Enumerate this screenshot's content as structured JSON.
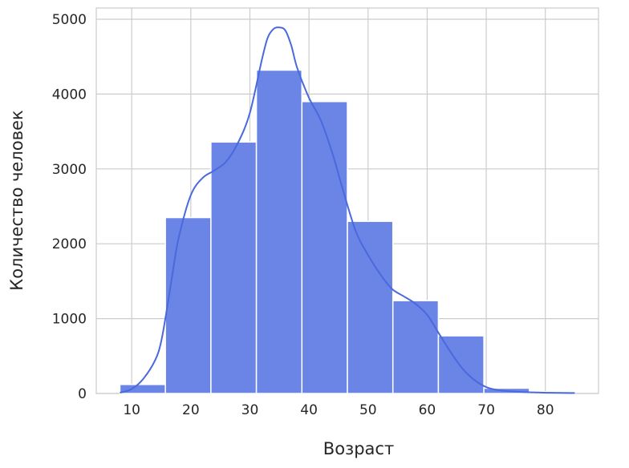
{
  "chart_data": {
    "type": "bar",
    "title": "",
    "xlabel": "Возраст",
    "ylabel": "Количество человек",
    "xlim": [
      4,
      89
    ],
    "ylim": [
      0,
      5150
    ],
    "grid": true,
    "xticks": [
      10,
      20,
      30,
      40,
      50,
      60,
      70,
      80
    ],
    "yticks": [
      0,
      1000,
      2000,
      3000,
      4000,
      5000
    ],
    "bins": [
      {
        "x0": 8.0,
        "x1": 15.7,
        "value": 120
      },
      {
        "x0": 15.7,
        "x1": 23.4,
        "value": 2350
      },
      {
        "x0": 23.4,
        "x1": 31.1,
        "value": 3360
      },
      {
        "x0": 31.1,
        "x1": 38.8,
        "value": 4320
      },
      {
        "x0": 38.8,
        "x1": 46.5,
        "value": 3900
      },
      {
        "x0": 46.5,
        "x1": 54.2,
        "value": 2300
      },
      {
        "x0": 54.2,
        "x1": 61.9,
        "value": 1240
      },
      {
        "x0": 61.9,
        "x1": 69.6,
        "value": 770
      },
      {
        "x0": 69.6,
        "x1": 77.3,
        "value": 70
      },
      {
        "x0": 77.3,
        "x1": 85.0,
        "value": 25
      }
    ],
    "kde": {
      "x": [
        8,
        10,
        12,
        14,
        15,
        16,
        17,
        18,
        20,
        22,
        24,
        26,
        28,
        30,
        32,
        33,
        34,
        35,
        36,
        37,
        38,
        40,
        42,
        44,
        46,
        48,
        50,
        52,
        54,
        56,
        58,
        60,
        62,
        64,
        66,
        68,
        70,
        72,
        74,
        76,
        78,
        80,
        82,
        85
      ],
      "y": [
        10,
        60,
        200,
        450,
        700,
        1150,
        1650,
        2100,
        2650,
        2880,
        2980,
        3100,
        3350,
        3750,
        4450,
        4750,
        4870,
        4890,
        4850,
        4650,
        4350,
        3950,
        3650,
        3200,
        2650,
        2150,
        1850,
        1600,
        1400,
        1300,
        1200,
        1050,
        800,
        550,
        330,
        180,
        85,
        45,
        30,
        20,
        15,
        10,
        8,
        5
      ]
    },
    "colors": {
      "bar_fill": "#6a85e6",
      "bar_stroke": "#ffffff",
      "kde_line": "#4a69dd",
      "grid": "#cccccc",
      "spine": "#cccccc"
    }
  }
}
